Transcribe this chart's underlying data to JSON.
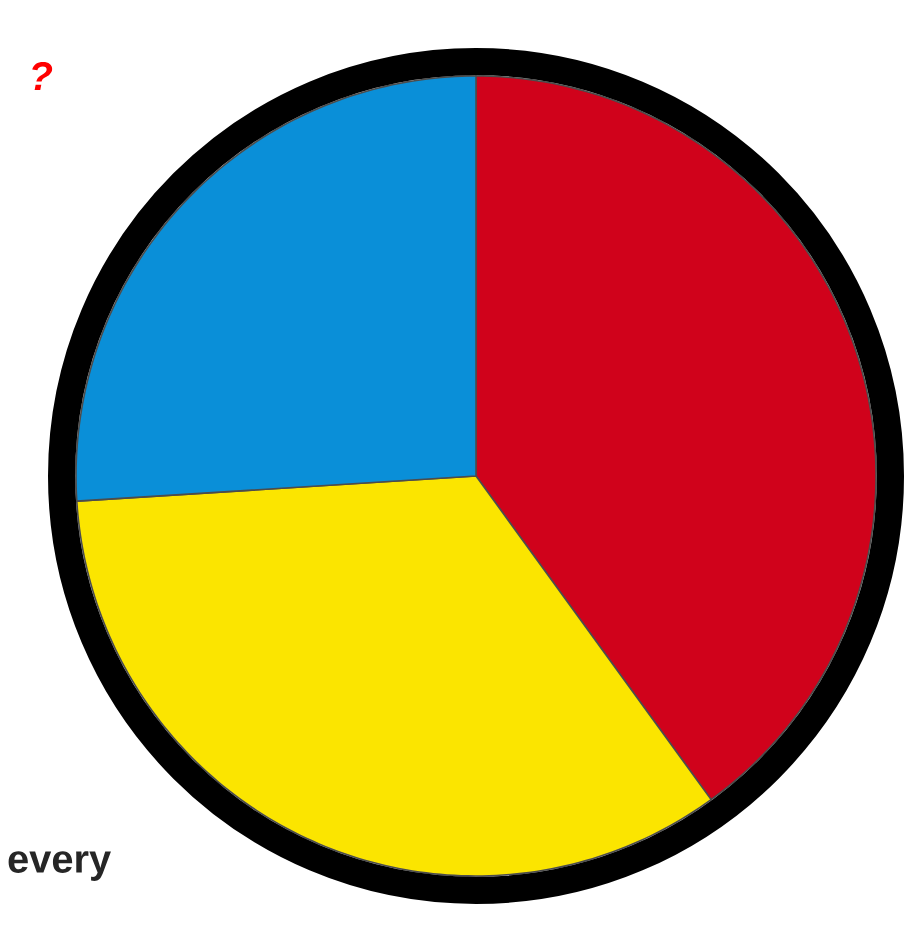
{
  "chart_data": {
    "type": "pie",
    "title": "?",
    "categories": [
      null,
      null,
      null
    ],
    "values": [
      40,
      34,
      26
    ],
    "colors": [
      "#d0021b",
      "#fbe500",
      "#0a8fd8"
    ],
    "annotations": [
      "every"
    ]
  }
}
